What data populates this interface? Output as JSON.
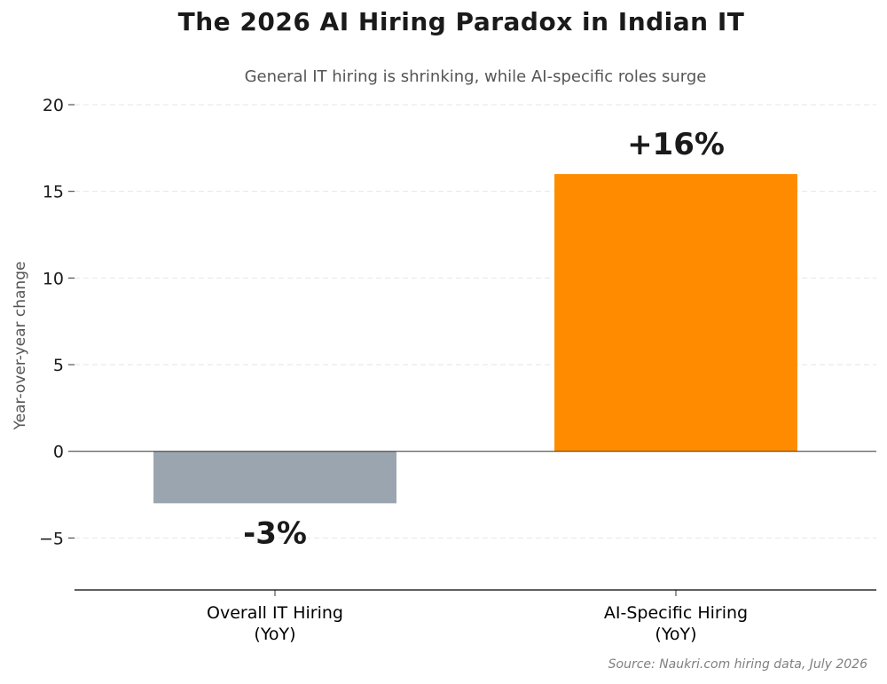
{
  "chart_data": {
    "type": "bar",
    "title": "The 2026 AI Hiring Paradox in Indian IT",
    "subtitle": "General IT hiring is shrinking, while AI-specific roles surge",
    "ylabel": "Year-over-year change",
    "xlabel": "",
    "categories": [
      [
        "Overall IT Hiring",
        "(YoY)"
      ],
      [
        "AI-Specific Hiring",
        "(YoY)"
      ]
    ],
    "values": [
      -3,
      16
    ],
    "data_labels": [
      "-3%",
      "+16%"
    ],
    "colors": [
      "#9aa5b0",
      "#ff8c00"
    ],
    "ylim": [
      -8,
      20
    ],
    "yticks": [
      -5,
      0,
      5,
      10,
      15,
      20
    ],
    "ytick_labels": [
      "−5",
      "0",
      "5",
      "10",
      "15",
      "20"
    ],
    "grid": true,
    "source": "Source: Naukri.com hiring data, July 2026"
  }
}
